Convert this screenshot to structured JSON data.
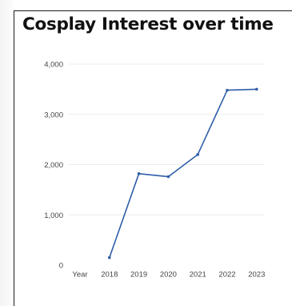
{
  "chart_data": {
    "type": "line",
    "title": "Cosplay Interest over time",
    "xlabel": "",
    "ylabel": "",
    "categories": [
      "Year",
      "2018",
      "2019",
      "2020",
      "2021",
      "2022",
      "2023"
    ],
    "series": [
      {
        "values": [
          null,
          150,
          1820,
          1760,
          2200,
          3480,
          3500
        ]
      }
    ],
    "ylim": [
      0,
      4000
    ],
    "yticks": [
      0,
      1000,
      2000,
      3000,
      4000
    ],
    "ytick_labels": [
      "0",
      "1,000",
      "2,000",
      "3,000",
      "4,000"
    ],
    "grid": true,
    "legend": "none",
    "line_color": "#2f5ea8",
    "grid_color": "#ececec"
  }
}
